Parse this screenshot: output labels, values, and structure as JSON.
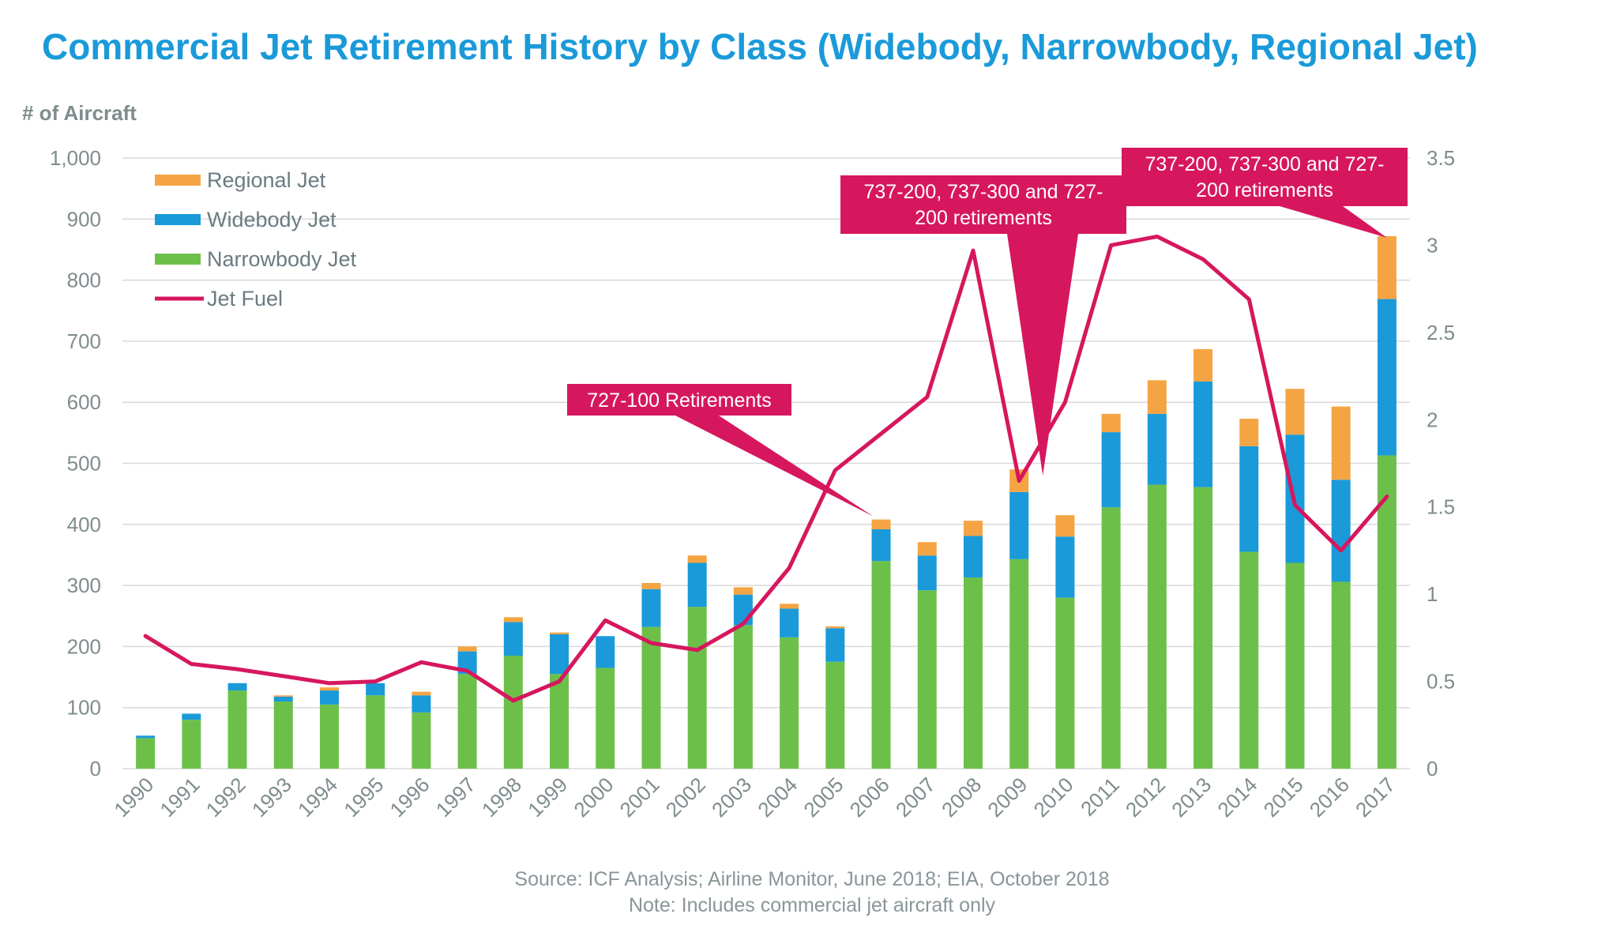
{
  "colors": {
    "title": "#1a9ad9",
    "regional": "#f5a443",
    "widebody": "#1a9ad9",
    "narrowbody": "#6cc04a",
    "fuel": "#d6175e",
    "grid": "#d9d9d9",
    "axis_text": "#7f8c8d"
  },
  "chart_data": {
    "type": "bar",
    "stacked": true,
    "title": "Commercial Jet Retirement History by Class (Widebody, Narrowbody, Regional Jet)",
    "ylabel": "# of Aircraft",
    "ylim": [
      0,
      1000
    ],
    "yticks": [
      "0",
      "100",
      "200",
      "300",
      "400",
      "500",
      "600",
      "700",
      "800",
      "900",
      "1,000"
    ],
    "y2lim": [
      0,
      3.5
    ],
    "y2ticks": [
      "0",
      "0.5",
      "1",
      "1.5",
      "2",
      "2.5",
      "3",
      "3.5"
    ],
    "categories": [
      "1990",
      "1991",
      "1992",
      "1993",
      "1994",
      "1995",
      "1996",
      "1997",
      "1998",
      "1999",
      "2000",
      "2001",
      "2002",
      "2003",
      "2004",
      "2005",
      "2006",
      "2007",
      "2008",
      "2009",
      "2010",
      "2011",
      "2012",
      "2013",
      "2014",
      "2015",
      "2016",
      "2017"
    ],
    "series": [
      {
        "name": "Narrowbody Jet",
        "values": [
          50,
          80,
          128,
          110,
          105,
          120,
          92,
          155,
          185,
          155,
          165,
          232,
          265,
          235,
          215,
          175,
          340,
          292,
          313,
          343,
          280,
          428,
          465,
          461,
          355,
          337,
          306,
          513
        ]
      },
      {
        "name": "Widebody Jet",
        "values": [
          4,
          10,
          12,
          8,
          23,
          20,
          28,
          37,
          55,
          65,
          52,
          62,
          72,
          50,
          47,
          55,
          52,
          57,
          68,
          110,
          100,
          123,
          116,
          173,
          173,
          210,
          167,
          256
        ]
      },
      {
        "name": "Regional Jet",
        "values": [
          0,
          0,
          0,
          2,
          5,
          0,
          6,
          8,
          8,
          3,
          0,
          10,
          12,
          12,
          8,
          3,
          16,
          22,
          25,
          37,
          35,
          30,
          55,
          53,
          45,
          75,
          120,
          103
        ]
      },
      {
        "name": "Jet Fuel",
        "axis": "y2",
        "type": "line",
        "values": [
          0.76,
          0.6,
          0.57,
          0.53,
          0.49,
          0.5,
          0.61,
          0.56,
          0.39,
          0.5,
          0.85,
          0.72,
          0.68,
          0.83,
          1.15,
          1.71,
          1.92,
          2.13,
          2.97,
          1.65,
          2.1,
          3.0,
          3.05,
          2.92,
          2.69,
          1.51,
          1.25,
          1.56
        ]
      }
    ],
    "legend": {
      "position": "top-left",
      "items": [
        {
          "label": "Regional Jet",
          "kind": "bar",
          "color": "#f5a443"
        },
        {
          "label": "Widebody Jet",
          "kind": "bar",
          "color": "#1a9ad9"
        },
        {
          "label": "Narrowbody Jet",
          "kind": "bar",
          "color": "#6cc04a"
        },
        {
          "label": "Jet Fuel",
          "kind": "line",
          "color": "#d6175e"
        }
      ]
    },
    "annotations": [
      {
        "lines": [
          "727-100 Retirements"
        ],
        "target_year": "2006"
      },
      {
        "lines": [
          "737-200, 737-300 and 727-",
          "200 retirements"
        ],
        "target_year": "2009"
      },
      {
        "lines": [
          "737-200, 737-300 and 727-",
          "200 retirements"
        ],
        "target_year": "2017"
      }
    ]
  },
  "footer": {
    "source": "Source: ICF Analysis; Airline Monitor, June 2018; EIA, October 2018",
    "note": "Note: Includes commercial jet aircraft only"
  }
}
